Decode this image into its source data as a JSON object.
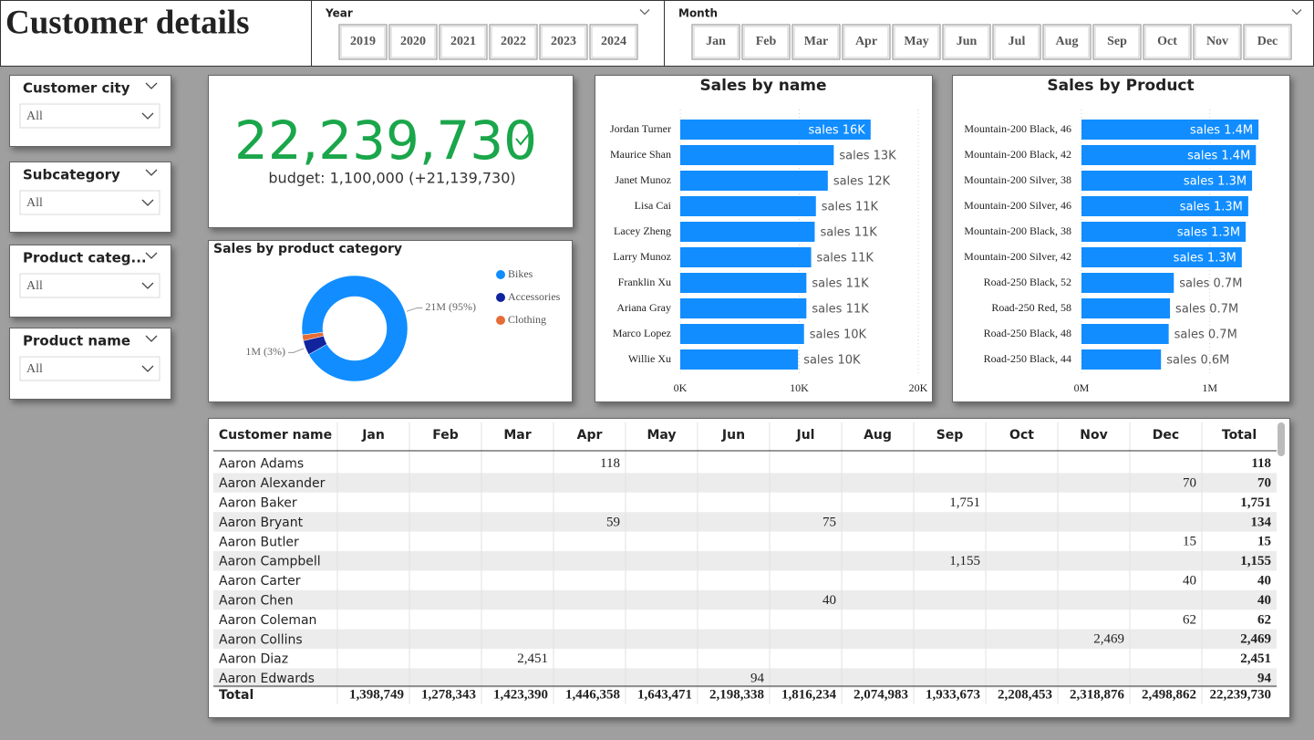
{
  "header": {
    "title": "Customer details"
  },
  "year_slicer": {
    "label": "Year",
    "options": [
      "2019",
      "2020",
      "2021",
      "2022",
      "2023",
      "2024"
    ]
  },
  "month_slicer": {
    "label": "Month",
    "options": [
      "Jan",
      "Feb",
      "Mar",
      "Apr",
      "May",
      "Jun",
      "Jul",
      "Aug",
      "Sep",
      "Oct",
      "Nov",
      "Dec"
    ]
  },
  "filters": [
    {
      "label": "Customer city",
      "value": "All"
    },
    {
      "label": "Subcategory",
      "value": "All"
    },
    {
      "label": "Product categ...",
      "value": "All"
    },
    {
      "label": "Product name",
      "value": "All"
    }
  ],
  "kpi": {
    "value": "22,239,730",
    "budget": "budget: 1,100,000 (+21,139,730)"
  },
  "chart_data": [
    {
      "type": "bar",
      "orientation": "horizontal",
      "title": "Sales by name",
      "color": "#118dff",
      "grid": true,
      "categories": [
        "Jordan Turner",
        "Maurice Shan",
        "Janet Munoz",
        "Lisa Cai",
        "Lacey Zheng",
        "Larry Munoz",
        "Franklin Xu",
        "Ariana Gray",
        "Marco Lopez",
        "Willie Xu"
      ],
      "values": [
        16.0,
        12.9,
        12.4,
        11.4,
        11.3,
        11.0,
        10.6,
        10.6,
        10.4,
        9.9
      ],
      "value_labels": [
        "sales 16K",
        "sales 13K",
        "sales 12K",
        "sales 11K",
        "sales 11K",
        "sales 11K",
        "sales 11K",
        "sales 11K",
        "sales 10K",
        "sales 10K"
      ],
      "xlim": [
        0,
        20
      ],
      "xticks": [
        {
          "value": 0,
          "label": "0K"
        },
        {
          "value": 10,
          "label": "10K"
        },
        {
          "value": 20,
          "label": "20K"
        }
      ]
    },
    {
      "type": "bar",
      "orientation": "horizontal",
      "title": "Sales by Product",
      "color": "#118dff",
      "grid": true,
      "categories": [
        "Mountain-200 Black, 46",
        "Mountain-200 Black, 42",
        "Mountain-200 Silver, 38",
        "Mountain-200 Silver, 46",
        "Mountain-200 Black, 38",
        "Mountain-200 Silver, 42",
        "Road-250 Black, 52",
        "Road-250 Red, 58",
        "Road-250 Black, 48",
        "Road-250 Black, 44"
      ],
      "values": [
        1.38,
        1.36,
        1.33,
        1.3,
        1.28,
        1.25,
        0.72,
        0.69,
        0.68,
        0.62
      ],
      "value_labels": [
        "sales 1.4M",
        "sales 1.4M",
        "sales 1.3M",
        "sales 1.3M",
        "sales 1.3M",
        "sales 1.3M",
        "sales 0.7M",
        "sales 0.7M",
        "sales 0.7M",
        "sales 0.6M"
      ],
      "xlim": [
        0,
        1.5
      ],
      "xticks": [
        {
          "value": 0,
          "label": "0M"
        },
        {
          "value": 1,
          "label": "1M"
        }
      ]
    },
    {
      "type": "pie",
      "donut": true,
      "title": "Sales by product category",
      "categories": [
        "Bikes",
        "Accessories",
        "Clothing"
      ],
      "colors": [
        "#118dff",
        "#12239e",
        "#e66c37"
      ],
      "values": [
        21,
        1,
        0.4
      ],
      "value_labels": [
        "21M (95%)",
        "1M (3%)",
        null
      ]
    }
  ],
  "table": {
    "columns": [
      "Customer name",
      "Jan",
      "Feb",
      "Mar",
      "Apr",
      "May",
      "Jun",
      "Jul",
      "Aug",
      "Sep",
      "Oct",
      "Nov",
      "Dec",
      "Total"
    ],
    "rows": [
      [
        "Aaron Adams",
        null,
        null,
        null,
        "118",
        null,
        null,
        null,
        null,
        null,
        null,
        null,
        null,
        "118"
      ],
      [
        "Aaron Alexander",
        null,
        null,
        null,
        null,
        null,
        null,
        null,
        null,
        null,
        null,
        null,
        "70",
        "70"
      ],
      [
        "Aaron Baker",
        null,
        null,
        null,
        null,
        null,
        null,
        null,
        null,
        "1,751",
        null,
        null,
        null,
        "1,751"
      ],
      [
        "Aaron Bryant",
        null,
        null,
        null,
        "59",
        null,
        null,
        "75",
        null,
        null,
        null,
        null,
        null,
        "134"
      ],
      [
        "Aaron Butler",
        null,
        null,
        null,
        null,
        null,
        null,
        null,
        null,
        null,
        null,
        null,
        "15",
        "15"
      ],
      [
        "Aaron Campbell",
        null,
        null,
        null,
        null,
        null,
        null,
        null,
        null,
        "1,155",
        null,
        null,
        null,
        "1,155"
      ],
      [
        "Aaron Carter",
        null,
        null,
        null,
        null,
        null,
        null,
        null,
        null,
        null,
        null,
        null,
        "40",
        "40"
      ],
      [
        "Aaron Chen",
        null,
        null,
        null,
        null,
        null,
        null,
        "40",
        null,
        null,
        null,
        null,
        null,
        "40"
      ],
      [
        "Aaron Coleman",
        null,
        null,
        null,
        null,
        null,
        null,
        null,
        null,
        null,
        null,
        null,
        "62",
        "62"
      ],
      [
        "Aaron Collins",
        null,
        null,
        null,
        null,
        null,
        null,
        null,
        null,
        null,
        null,
        "2,469",
        null,
        "2,469"
      ],
      [
        "Aaron Diaz",
        null,
        null,
        "2,451",
        null,
        null,
        null,
        null,
        null,
        null,
        null,
        null,
        null,
        "2,451"
      ],
      [
        "Aaron Edwards",
        null,
        null,
        null,
        null,
        null,
        "94",
        null,
        null,
        null,
        null,
        null,
        null,
        "94"
      ]
    ],
    "total": [
      "Total",
      "1,398,749",
      "1,278,343",
      "1,423,390",
      "1,446,358",
      "1,643,471",
      "2,198,338",
      "1,816,234",
      "2,074,983",
      "1,933,673",
      "2,208,453",
      "2,318,876",
      "2,498,862",
      "22,239,730"
    ]
  }
}
